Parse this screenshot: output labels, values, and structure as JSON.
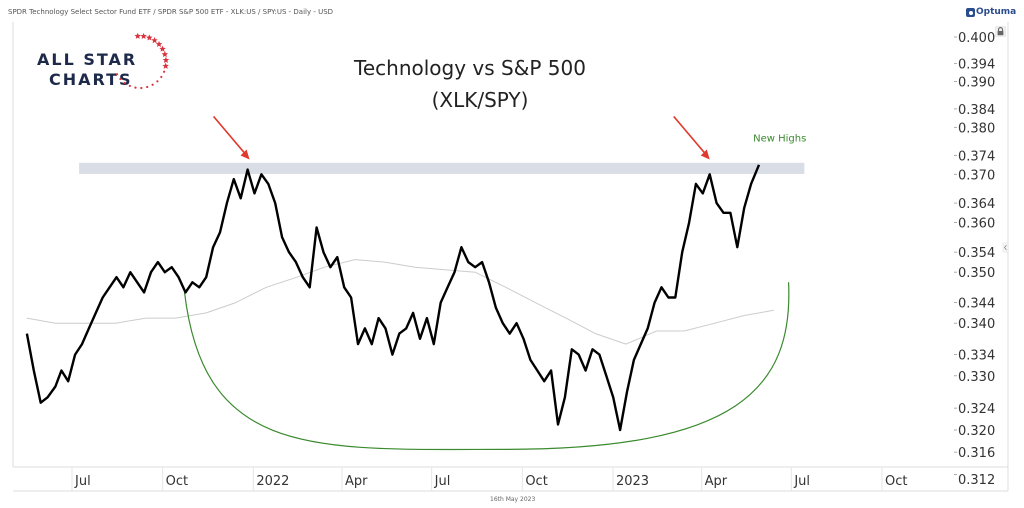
{
  "header": {
    "subtitle": "SPDR Technology Select Sector Fund ETF / SPDR S&P 500 ETF - XLK:US / SPY:US - Daily - USD",
    "brand": "Optuma",
    "lock_icon": "lock-icon",
    "footer_date": "16th May 2023"
  },
  "logo": {
    "line1": "ALL STAR",
    "line2": "CHARTS",
    "star_color": "#d9333f",
    "text_color": "#1e2a4a"
  },
  "chart_data": {
    "type": "line",
    "title": "Technology vs S&P 500",
    "subtitle": "(XLK/SPY)",
    "xlabel": "",
    "ylabel": "",
    "y_scale": "log",
    "ylim": [
      0.312,
      0.402
    ],
    "xlim": [
      "2021-05-01",
      "2023-11-30"
    ],
    "y_ticks": [
      "0.400",
      "0.394",
      "0.390",
      "0.384",
      "0.380",
      "0.374",
      "0.370",
      "0.364",
      "0.360",
      "0.354",
      "0.350",
      "0.344",
      "0.340",
      "0.334",
      "0.330",
      "0.324",
      "0.320",
      "0.316",
      "0.312"
    ],
    "x_ticks": [
      {
        "label": "Jul",
        "date": "2021-07-01"
      },
      {
        "label": "Oct",
        "date": "2021-10-01"
      },
      {
        "label": "2022",
        "date": "2022-01-01"
      },
      {
        "label": "Apr",
        "date": "2022-04-01"
      },
      {
        "label": "Jul",
        "date": "2022-07-01"
      },
      {
        "label": "Oct",
        "date": "2022-10-01"
      },
      {
        "label": "2023",
        "date": "2023-01-01"
      },
      {
        "label": "Apr",
        "date": "2023-04-01"
      },
      {
        "label": "Jul",
        "date": "2023-07-01"
      },
      {
        "label": "Oct",
        "date": "2023-10-01"
      }
    ],
    "series": [
      {
        "name": "XLK/SPY",
        "color": "#000000",
        "points": [
          [
            "2021-05-03",
            0.338
          ],
          [
            "2021-05-10",
            0.331
          ],
          [
            "2021-05-17",
            0.325
          ],
          [
            "2021-05-24",
            0.326
          ],
          [
            "2021-06-01",
            0.328
          ],
          [
            "2021-06-07",
            0.331
          ],
          [
            "2021-06-14",
            0.329
          ],
          [
            "2021-06-21",
            0.334
          ],
          [
            "2021-06-28",
            0.336
          ],
          [
            "2021-07-05",
            0.339
          ],
          [
            "2021-07-12",
            0.342
          ],
          [
            "2021-07-19",
            0.345
          ],
          [
            "2021-07-26",
            0.347
          ],
          [
            "2021-08-02",
            0.349
          ],
          [
            "2021-08-09",
            0.347
          ],
          [
            "2021-08-16",
            0.35
          ],
          [
            "2021-08-23",
            0.348
          ],
          [
            "2021-08-30",
            0.346
          ],
          [
            "2021-09-06",
            0.35
          ],
          [
            "2021-09-13",
            0.352
          ],
          [
            "2021-09-20",
            0.35
          ],
          [
            "2021-09-27",
            0.351
          ],
          [
            "2021-10-04",
            0.349
          ],
          [
            "2021-10-11",
            0.346
          ],
          [
            "2021-10-18",
            0.348
          ],
          [
            "2021-10-25",
            0.347
          ],
          [
            "2021-11-01",
            0.349
          ],
          [
            "2021-11-08",
            0.355
          ],
          [
            "2021-11-15",
            0.358
          ],
          [
            "2021-11-22",
            0.364
          ],
          [
            "2021-11-29",
            0.369
          ],
          [
            "2021-12-06",
            0.365
          ],
          [
            "2021-12-13",
            0.371
          ],
          [
            "2021-12-20",
            0.366
          ],
          [
            "2021-12-27",
            0.37
          ],
          [
            "2022-01-03",
            0.368
          ],
          [
            "2022-01-10",
            0.364
          ],
          [
            "2022-01-17",
            0.357
          ],
          [
            "2022-01-24",
            0.354
          ],
          [
            "2022-01-31",
            0.352
          ],
          [
            "2022-02-07",
            0.349
          ],
          [
            "2022-02-14",
            0.347
          ],
          [
            "2022-02-21",
            0.359
          ],
          [
            "2022-02-28",
            0.354
          ],
          [
            "2022-03-07",
            0.351
          ],
          [
            "2022-03-14",
            0.353
          ],
          [
            "2022-03-21",
            0.347
          ],
          [
            "2022-03-28",
            0.345
          ],
          [
            "2022-04-04",
            0.336
          ],
          [
            "2022-04-11",
            0.339
          ],
          [
            "2022-04-18",
            0.336
          ],
          [
            "2022-04-25",
            0.341
          ],
          [
            "2022-05-02",
            0.339
          ],
          [
            "2022-05-09",
            0.334
          ],
          [
            "2022-05-16",
            0.338
          ],
          [
            "2022-05-23",
            0.339
          ],
          [
            "2022-05-30",
            0.342
          ],
          [
            "2022-06-06",
            0.337
          ],
          [
            "2022-06-13",
            0.341
          ],
          [
            "2022-06-20",
            0.336
          ],
          [
            "2022-06-27",
            0.344
          ],
          [
            "2022-07-04",
            0.347
          ],
          [
            "2022-07-11",
            0.35
          ],
          [
            "2022-07-18",
            0.355
          ],
          [
            "2022-07-25",
            0.352
          ],
          [
            "2022-08-01",
            0.351
          ],
          [
            "2022-08-08",
            0.352
          ],
          [
            "2022-08-15",
            0.348
          ],
          [
            "2022-08-22",
            0.343
          ],
          [
            "2022-08-29",
            0.34
          ],
          [
            "2022-09-05",
            0.338
          ],
          [
            "2022-09-12",
            0.34
          ],
          [
            "2022-09-19",
            0.337
          ],
          [
            "2022-09-26",
            0.333
          ],
          [
            "2022-10-03",
            0.331
          ],
          [
            "2022-10-10",
            0.329
          ],
          [
            "2022-10-17",
            0.331
          ],
          [
            "2022-10-24",
            0.321
          ],
          [
            "2022-10-31",
            0.326
          ],
          [
            "2022-11-07",
            0.335
          ],
          [
            "2022-11-14",
            0.334
          ],
          [
            "2022-11-21",
            0.331
          ],
          [
            "2022-11-28",
            0.335
          ],
          [
            "2022-12-05",
            0.334
          ],
          [
            "2022-12-12",
            0.33
          ],
          [
            "2022-12-19",
            0.326
          ],
          [
            "2022-12-26",
            0.32
          ],
          [
            "2023-01-02",
            0.327
          ],
          [
            "2023-01-09",
            0.333
          ],
          [
            "2023-01-16",
            0.336
          ],
          [
            "2023-01-23",
            0.339
          ],
          [
            "2023-01-30",
            0.344
          ],
          [
            "2023-02-06",
            0.347
          ],
          [
            "2023-02-13",
            0.345
          ],
          [
            "2023-02-20",
            0.345
          ],
          [
            "2023-02-27",
            0.354
          ],
          [
            "2023-03-06",
            0.36
          ],
          [
            "2023-03-13",
            0.368
          ],
          [
            "2023-03-20",
            0.366
          ],
          [
            "2023-03-27",
            0.37
          ],
          [
            "2023-04-03",
            0.364
          ],
          [
            "2023-04-10",
            0.362
          ],
          [
            "2023-04-17",
            0.362
          ],
          [
            "2023-04-24",
            0.355
          ],
          [
            "2023-05-01",
            0.363
          ],
          [
            "2023-05-08",
            0.368
          ],
          [
            "2023-05-16",
            0.372
          ]
        ]
      },
      {
        "name": "Moving Average",
        "color": "#cccccc",
        "points": [
          [
            "2021-05-03",
            0.341
          ],
          [
            "2021-06-01",
            0.34
          ],
          [
            "2021-07-01",
            0.34
          ],
          [
            "2021-08-01",
            0.34
          ],
          [
            "2021-09-01",
            0.341
          ],
          [
            "2021-10-01",
            0.341
          ],
          [
            "2021-11-01",
            0.342
          ],
          [
            "2021-12-01",
            0.344
          ],
          [
            "2022-01-01",
            0.347
          ],
          [
            "2022-02-01",
            0.349
          ],
          [
            "2022-03-01",
            0.351
          ],
          [
            "2022-04-01",
            0.3525
          ],
          [
            "2022-05-01",
            0.352
          ],
          [
            "2022-06-01",
            0.351
          ],
          [
            "2022-07-01",
            0.3505
          ],
          [
            "2022-08-01",
            0.35
          ],
          [
            "2022-09-01",
            0.347
          ],
          [
            "2022-10-01",
            0.344
          ],
          [
            "2022-11-01",
            0.341
          ],
          [
            "2022-12-01",
            0.338
          ],
          [
            "2023-01-01",
            0.336
          ],
          [
            "2023-02-01",
            0.3385
          ],
          [
            "2023-03-01",
            0.3385
          ],
          [
            "2023-04-01",
            0.34
          ],
          [
            "2023-05-01",
            0.3415
          ],
          [
            "2023-05-31",
            0.3425
          ]
        ]
      }
    ],
    "resistance_band": {
      "from": 0.3705,
      "to": 0.372,
      "color": "#d9dde5",
      "start": "2021-06-25",
      "end": "2023-07-01"
    },
    "annotations": [
      {
        "type": "arrow",
        "color": "#e03a2e",
        "target": [
          "2021-12-15",
          0.3725
        ],
        "label": ""
      },
      {
        "type": "arrow",
        "color": "#e03a2e",
        "target": [
          "2023-03-27",
          0.3725
        ],
        "label": ""
      },
      {
        "type": "text",
        "color": "#3a8a2e",
        "at": [
          "2023-05-10",
          0.377
        ],
        "label": "New Highs"
      },
      {
        "type": "arc",
        "color": "#3a8a2e",
        "from": [
          "2021-10-10",
          0.346
        ],
        "bottom": [
          "2022-09-01",
          0.3165
        ],
        "to": [
          "2023-06-15",
          0.348
        ],
        "label": "Rounding bottom"
      }
    ]
  }
}
